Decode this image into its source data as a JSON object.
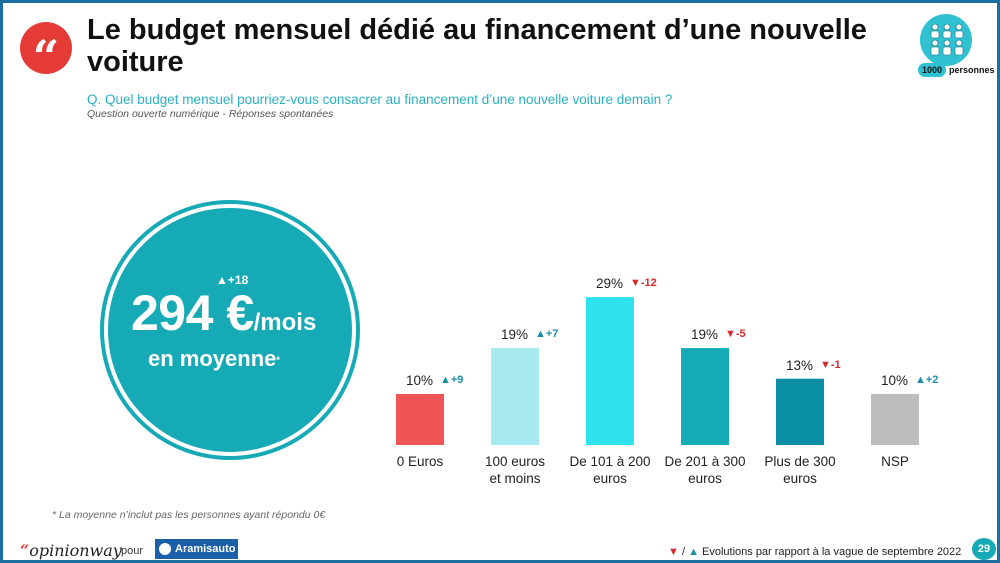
{
  "header": {
    "title": "Le budget mensuel dédié au financement d’une nouvelle voiture",
    "question": "Q. Quel budget mensuel pourriez-vous consacrer au financement d’une nouvelle voiture demain ?",
    "question_note": "Question ouverte numérique - Réponses spontanées",
    "quote_icon": "quote-icon"
  },
  "sample": {
    "count": "1000",
    "label": "personnes",
    "icon": "people-group-icon",
    "color": "#2fc1d2"
  },
  "mean": {
    "evolution": "+18",
    "evolution_direction": "up",
    "value": "294 €",
    "unit": "/mois",
    "label": "en moyenne",
    "star": "*",
    "color": "#16aab6"
  },
  "chart_data": {
    "type": "bar",
    "categories": [
      "0 Euros",
      "100 euros et moins",
      "De 101 à 200 euros",
      "De 201 à 300 euros",
      "Plus de 300 euros",
      "NSP"
    ],
    "category_lines": [
      [
        "0 Euros"
      ],
      [
        "100 euros",
        "et moins"
      ],
      [
        "De 101 à 200",
        "euros"
      ],
      [
        "De 201 à 300",
        "euros"
      ],
      [
        "Plus de 300",
        "euros"
      ],
      [
        "NSP"
      ]
    ],
    "values": [
      10,
      19,
      29,
      19,
      13,
      10
    ],
    "value_labels": [
      "10%",
      "19%",
      "29%",
      "19%",
      "13%",
      "10%"
    ],
    "evolutions": [
      "+9",
      "+7",
      "-12",
      "-5",
      "-1",
      "+2"
    ],
    "evolution_directions": [
      "up",
      "up",
      "down",
      "down",
      "down",
      "up"
    ],
    "colors": [
      "#f05454",
      "#a6eaf0",
      "#2fe3ee",
      "#16aab6",
      "#0a8ea5",
      "#bdbdbd"
    ],
    "ylim": [
      0,
      30
    ],
    "title": "",
    "xlabel": "",
    "ylabel": "",
    "grid": false
  },
  "footnote": "* La moyenne n’inclut pas les personnes ayant répondu 0€",
  "footer": {
    "brand": "opinionway",
    "brand_quote": "“",
    "pour": "pour",
    "partner": "Aramisauto",
    "legend_sep": " / ",
    "legend_text": " Evolutions par rapport à la vague de septembre 2022",
    "page": "29"
  }
}
